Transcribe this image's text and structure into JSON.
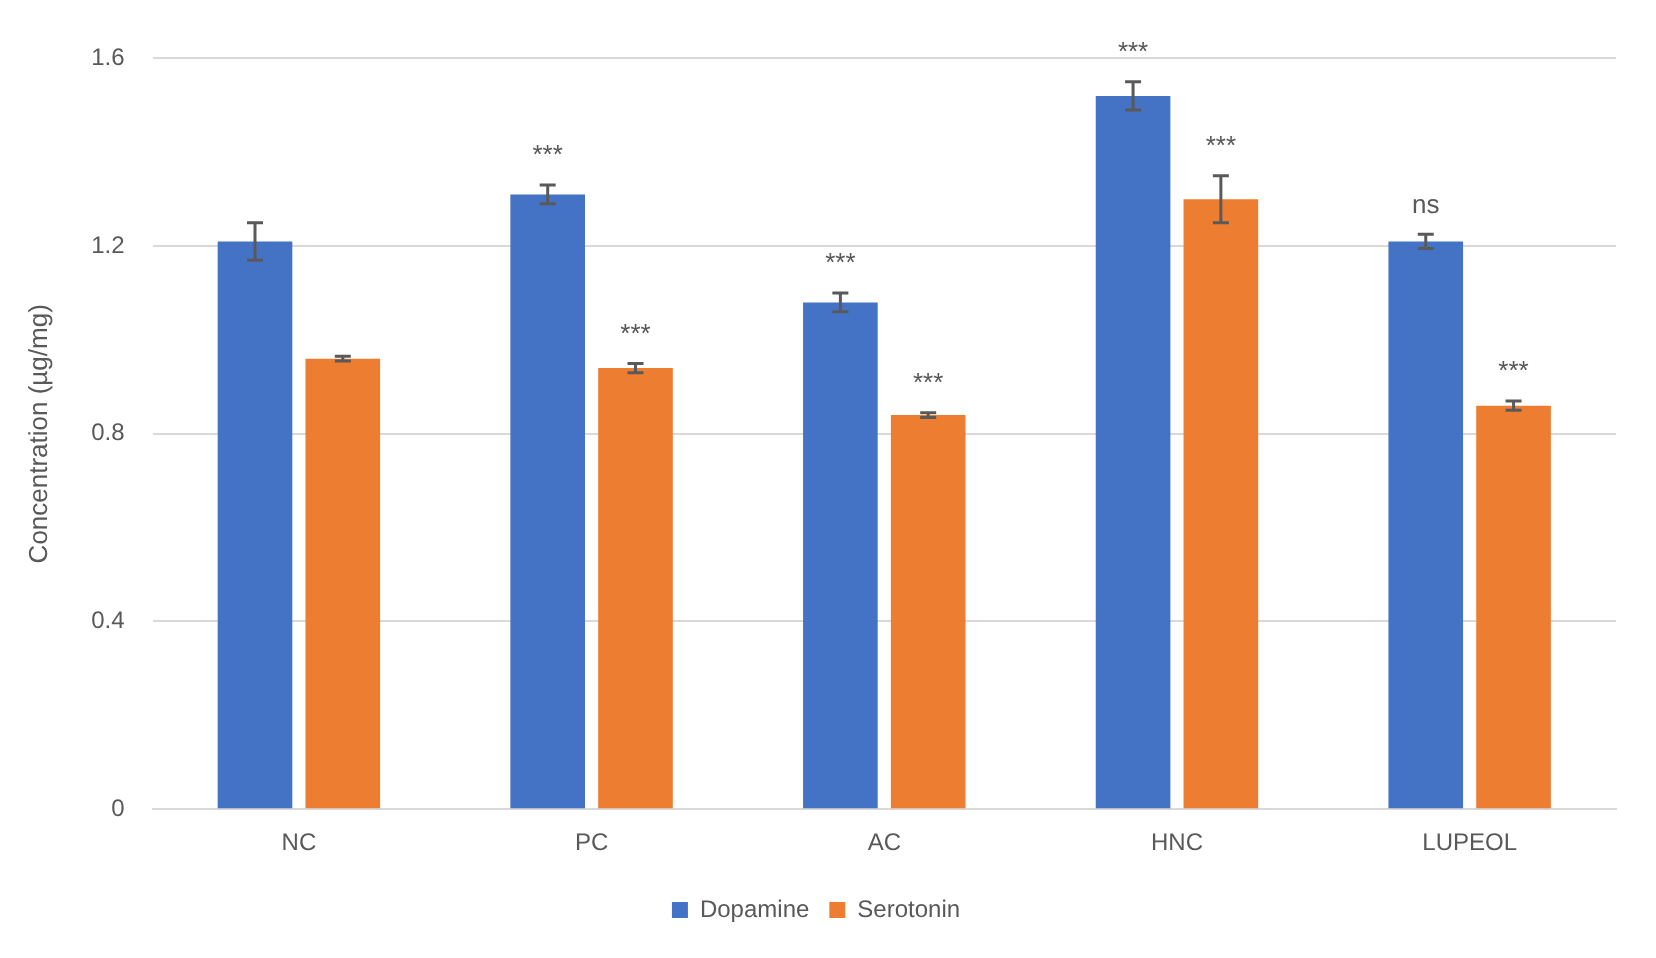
{
  "chart_data": {
    "type": "bar",
    "ylabel": "Concentration (µg/mg)",
    "categories": [
      "NC",
      "PC",
      "AC",
      "HNC",
      "LUPEOL"
    ],
    "series": [
      {
        "name": "Dopamine",
        "color": "#4472c4",
        "values": [
          1.21,
          1.31,
          1.08,
          1.52,
          1.21
        ],
        "errors": [
          0.04,
          0.02,
          0.02,
          0.03,
          0.015
        ]
      },
      {
        "name": "Serotonin",
        "color": "#ed7d31",
        "values": [
          0.96,
          0.94,
          0.84,
          1.3,
          0.86
        ],
        "errors": [
          0.005,
          0.01,
          0.005,
          0.05,
          0.01
        ]
      }
    ],
    "ylim": [
      0,
      1.6
    ],
    "yticks": [
      0,
      0.4,
      0.8,
      1.2,
      1.6
    ],
    "grid": "y",
    "legend": "bottom",
    "annotations": [
      {
        "text": "***",
        "x": "PC",
        "y": 1.31
      },
      {
        "text": "***",
        "x": "PC",
        "y": 0.94
      },
      {
        "text": "***",
        "x": "AC",
        "y": 1.08
      },
      {
        "text": "***",
        "x": "AC",
        "y": 0.84
      },
      {
        "text": "***",
        "x": "HNC",
        "y": 1.52
      },
      {
        "text": "***",
        "x": "HNC",
        "y": 1.3
      },
      {
        "text": "ns",
        "x": "LUPEOL",
        "y": 1.21
      },
      {
        "text": "***",
        "x": "LUPEOL",
        "y": 0.86
      }
    ]
  }
}
